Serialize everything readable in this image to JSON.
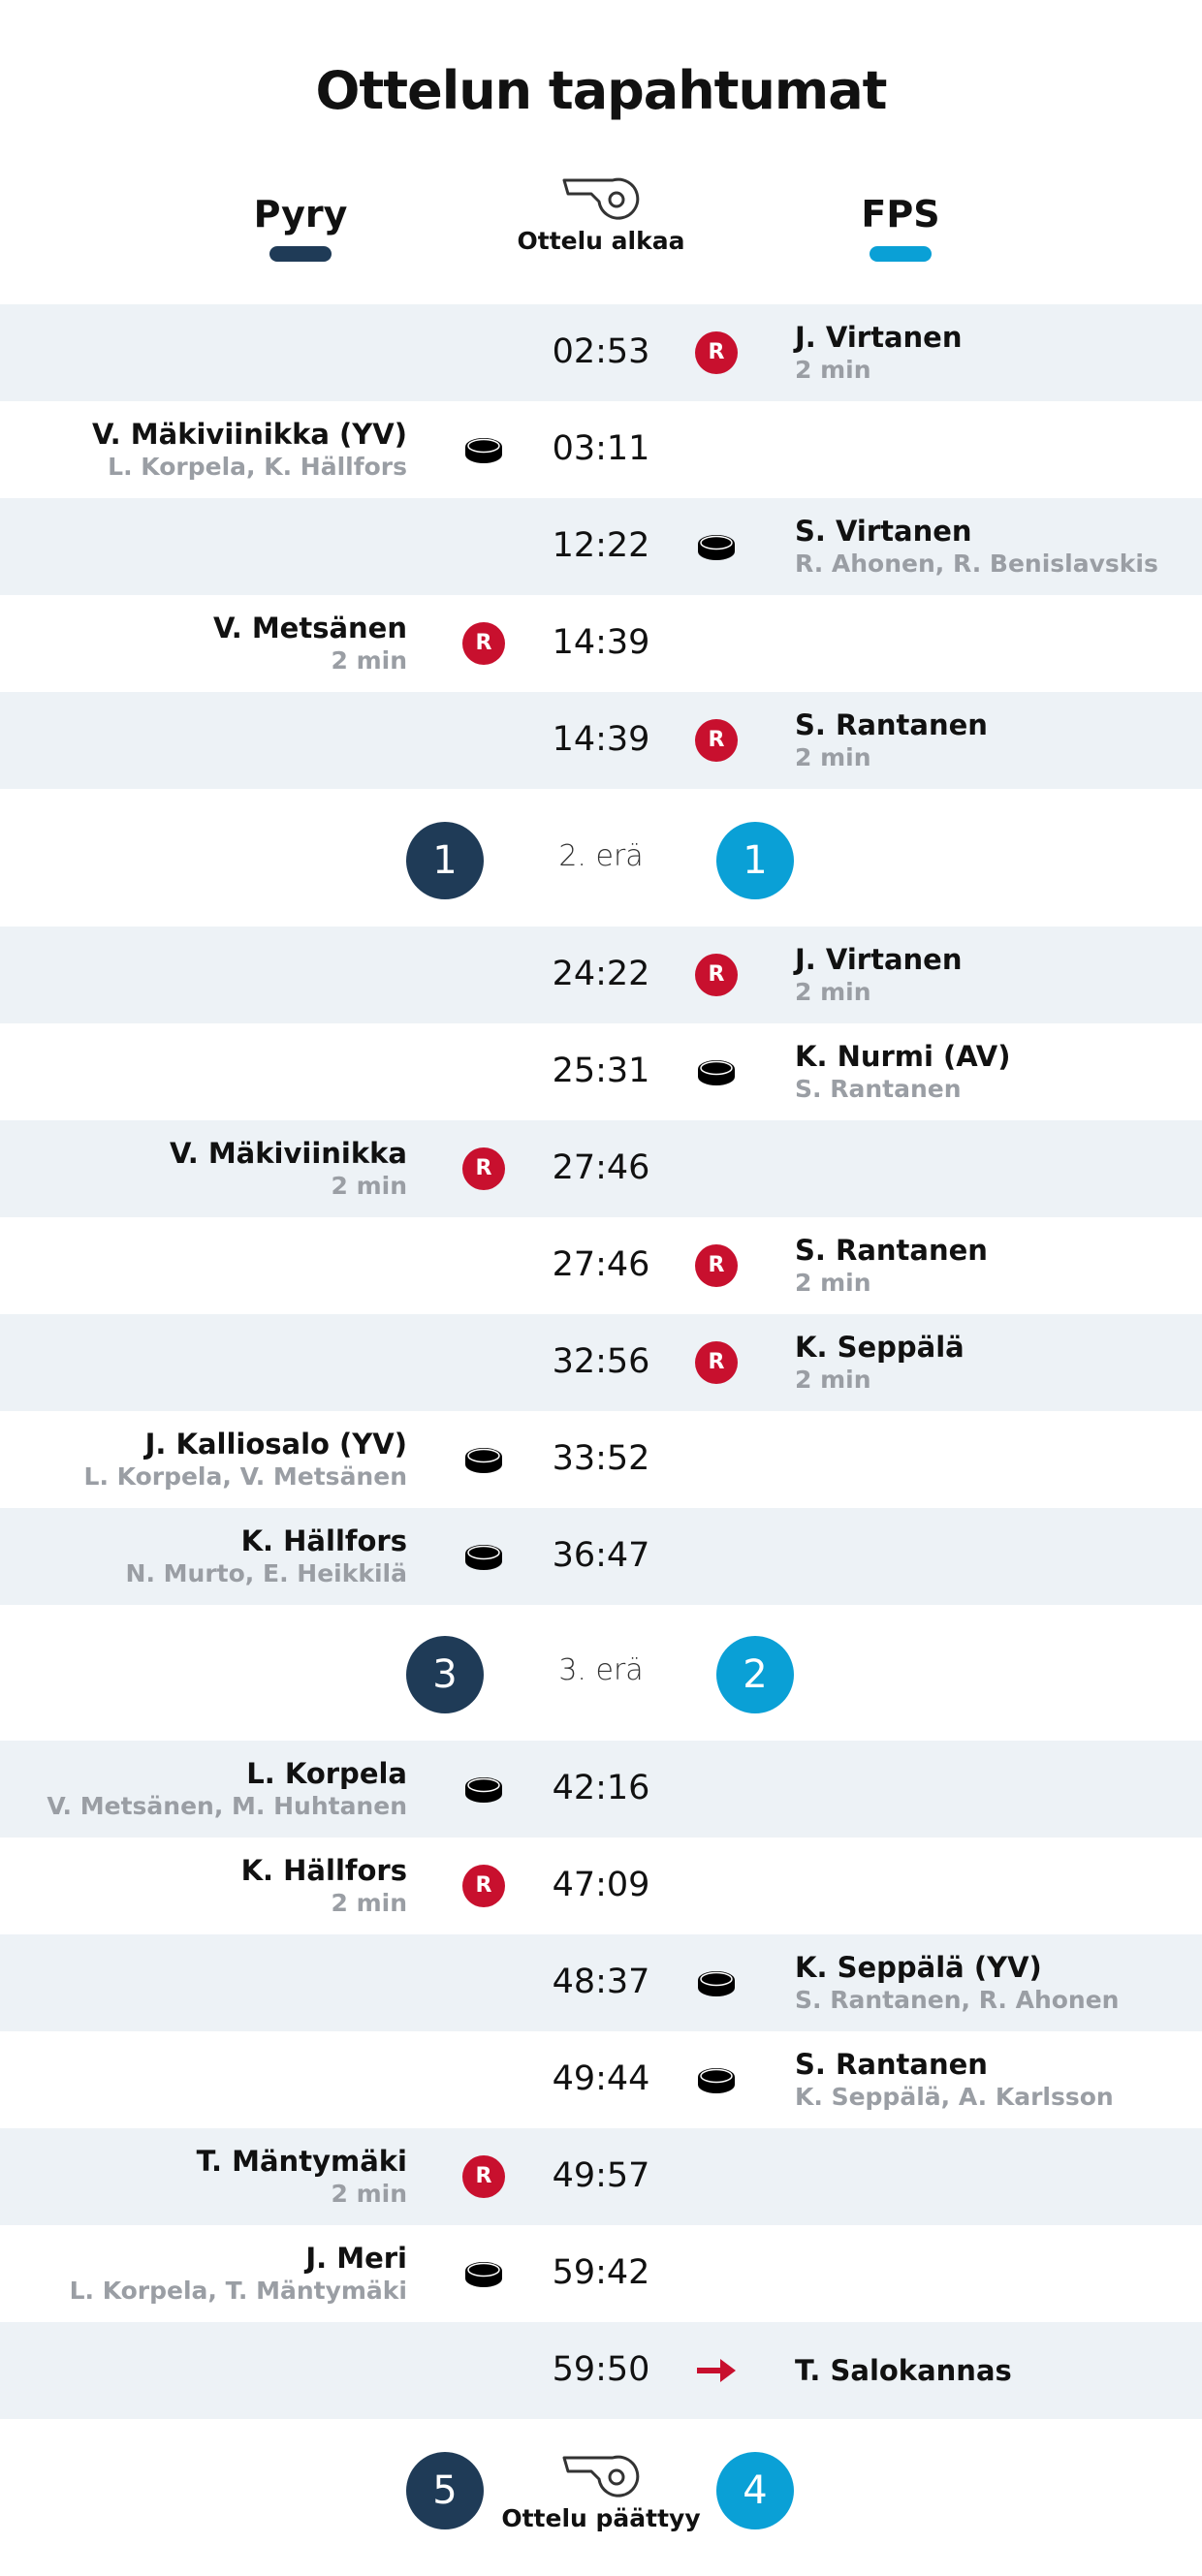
{
  "title": "Ottelun tapahtumat",
  "teams": {
    "home": {
      "name": "Pyry",
      "color": "#1f3b57"
    },
    "away": {
      "name": "FPS",
      "color": "#0aa0d6"
    }
  },
  "start_label": "Ottelu alkaa",
  "end_label": "Ottelu päättyy",
  "periods": [
    {
      "label": "2. erä",
      "home_score": "1",
      "away_score": "1"
    },
    {
      "label": "3. erä",
      "home_score": "3",
      "away_score": "2"
    }
  ],
  "final_score": {
    "home": "5",
    "away": "4"
  },
  "events": [
    {
      "side": "away",
      "type": "penalty",
      "icon": "penalty-icon",
      "time": "02:53",
      "name": "J. Virtanen",
      "sub": "2 min"
    },
    {
      "side": "home",
      "type": "goal",
      "icon": "puck-icon",
      "time": "03:11",
      "name": "V. Mäkiviinikka (YV)",
      "sub": "L. Korpela, K. Hällfors"
    },
    {
      "side": "away",
      "type": "goal",
      "icon": "puck-icon",
      "time": "12:22",
      "name": "S. Virtanen",
      "sub": "R. Ahonen, R. Benislavskis"
    },
    {
      "side": "home",
      "type": "penalty",
      "icon": "penalty-icon",
      "time": "14:39",
      "name": "V. Metsänen",
      "sub": "2 min"
    },
    {
      "side": "away",
      "type": "penalty",
      "icon": "penalty-icon",
      "time": "14:39",
      "name": "S. Rantanen",
      "sub": "2 min"
    },
    {
      "side": "away",
      "type": "penalty",
      "icon": "penalty-icon",
      "time": "24:22",
      "name": "J. Virtanen",
      "sub": "2 min"
    },
    {
      "side": "away",
      "type": "goal",
      "icon": "puck-icon",
      "time": "25:31",
      "name": "K. Nurmi (AV)",
      "sub": "S. Rantanen"
    },
    {
      "side": "home",
      "type": "penalty",
      "icon": "penalty-icon",
      "time": "27:46",
      "name": "V. Mäkiviinikka",
      "sub": "2 min"
    },
    {
      "side": "away",
      "type": "penalty",
      "icon": "penalty-icon",
      "time": "27:46",
      "name": "S. Rantanen",
      "sub": "2 min"
    },
    {
      "side": "away",
      "type": "penalty",
      "icon": "penalty-icon",
      "time": "32:56",
      "name": "K. Seppälä",
      "sub": "2 min"
    },
    {
      "side": "home",
      "type": "goal",
      "icon": "puck-icon",
      "time": "33:52",
      "name": "J. Kalliosalo (YV)",
      "sub": "L. Korpela, V. Metsänen"
    },
    {
      "side": "home",
      "type": "goal",
      "icon": "puck-icon",
      "time": "36:47",
      "name": "K. Hällfors",
      "sub": "N. Murto, E. Heikkilä"
    },
    {
      "side": "home",
      "type": "goal",
      "icon": "puck-icon",
      "time": "42:16",
      "name": "L. Korpela",
      "sub": "V. Metsänen, M. Huhtanen"
    },
    {
      "side": "home",
      "type": "penalty",
      "icon": "penalty-icon",
      "time": "47:09",
      "name": "K. Hällfors",
      "sub": "2 min"
    },
    {
      "side": "away",
      "type": "goal",
      "icon": "puck-icon",
      "time": "48:37",
      "name": "K. Seppälä (YV)",
      "sub": "S. Rantanen, R. Ahonen"
    },
    {
      "side": "away",
      "type": "goal",
      "icon": "puck-icon",
      "time": "49:44",
      "name": "S. Rantanen",
      "sub": "K. Seppälä, A. Karlsson"
    },
    {
      "side": "home",
      "type": "penalty",
      "icon": "penalty-icon",
      "time": "49:57",
      "name": "T. Mäntymäki",
      "sub": "2 min"
    },
    {
      "side": "home",
      "type": "goal",
      "icon": "puck-icon",
      "time": "59:42",
      "name": "J. Meri",
      "sub": "L. Korpela, T. Mäntymäki"
    },
    {
      "side": "away",
      "type": "substitution",
      "icon": "arrow-right-icon",
      "time": "59:50",
      "name": "T. Salokannas",
      "sub": ""
    }
  ],
  "penalty_icon_text": "R",
  "colors": {
    "penalty": "#c8102e",
    "row_shade": "#edf2f6",
    "sub_text": "#9a9ea4"
  }
}
